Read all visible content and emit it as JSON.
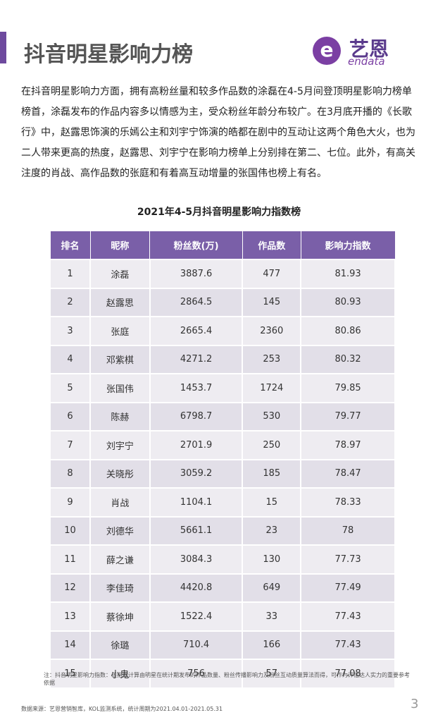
{
  "header": {
    "title": "抖音明星影响力榜",
    "logo": {
      "brand": "艺恩",
      "sub": "endata"
    }
  },
  "body": {
    "paragraph": "在抖音明星影响力方面，拥有高粉丝量和较多作品数的涂磊在4-5月间登顶明星影响力榜单榜首，涂磊发布的作品内容多以情感为主，受众粉丝年龄分布较广。在3月底开播的《长歌行》中，赵露思饰演的乐嫣公主和刘宇宁饰演的皓都在剧中的互动让这两个角色大火，也为二人带来更高的热度，赵露思、刘宇宁在影响力榜单上分别排在第二、七位。此外，有高关注度的肖战、高作品数的张庭和有着高互动增量的张国伟也榜上有名。"
  },
  "table": {
    "title": "2021年4-5月抖音明星影响力指数榜",
    "columns": [
      "排名",
      "昵称",
      "粉丝数(万)",
      "作品数",
      "影响力指数"
    ],
    "rows": [
      [
        "1",
        "涂磊",
        "3887.6",
        "477",
        "81.93"
      ],
      [
        "2",
        "赵露思",
        "2864.5",
        "145",
        "80.93"
      ],
      [
        "3",
        "张庭",
        "2665.4",
        "2360",
        "80.86"
      ],
      [
        "4",
        "邓紫棋",
        "4271.2",
        "253",
        "80.32"
      ],
      [
        "5",
        "张国伟",
        "1453.7",
        "1724",
        "79.85"
      ],
      [
        "6",
        "陈赫",
        "6798.7",
        "530",
        "79.77"
      ],
      [
        "7",
        "刘宇宁",
        "2701.9",
        "250",
        "78.97"
      ],
      [
        "8",
        "关晓彤",
        "3059.2",
        "185",
        "78.47"
      ],
      [
        "9",
        "肖战",
        "1104.1",
        "15",
        "78.33"
      ],
      [
        "10",
        "刘德华",
        "5661.1",
        "23",
        "78"
      ],
      [
        "11",
        "薛之谦",
        "3084.3",
        "130",
        "77.73"
      ],
      [
        "12",
        "李佳琦",
        "4420.8",
        "649",
        "77.49"
      ],
      [
        "13",
        "蔡徐坤",
        "1522.4",
        "33",
        "77.43"
      ],
      [
        "14",
        "徐璐",
        "710.4",
        "166",
        "77.43"
      ],
      [
        "15",
        "小鬼",
        "756",
        "57",
        "77.08"
      ]
    ]
  },
  "footer": {
    "note": "注：抖音明星影响力指数：该指数计算由明星在统计期发布的作品数量、粉丝传播影响力及粉丝互动质量算法而得，可作为评估达人实力的重要参考依据",
    "source": "数据来源：艺恩营销智库，KOL监测系统，统计周期为2021.04.01-2021.05.31",
    "page": "3"
  }
}
